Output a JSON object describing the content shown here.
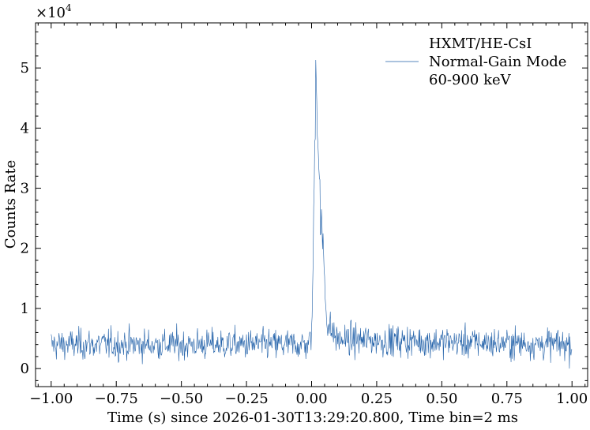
{
  "chart_data": {
    "type": "line",
    "title": "",
    "xlabel": "Time (s) since 2026-01-30T13:29:20.800, Time bin=2 ms",
    "ylabel": "Counts Rate",
    "y_multiplier_label": "×10",
    "y_multiplier_exponent": "4",
    "xlim": [
      -1.06,
      1.06
    ],
    "ylim": [
      -3000,
      57500
    ],
    "x_ticks": [
      -1.0,
      -0.75,
      -0.5,
      -0.25,
      0.0,
      0.25,
      0.5,
      0.75,
      1.0
    ],
    "x_tick_labels": [
      "−1.00",
      "−0.75",
      "−0.50",
      "−0.25",
      "0.00",
      "0.25",
      "0.50",
      "0.75",
      "1.00"
    ],
    "y_ticks": [
      0,
      10000,
      20000,
      30000,
      40000,
      50000
    ],
    "y_tick_labels": [
      "0",
      "1",
      "2",
      "3",
      "4",
      "5"
    ],
    "grid": false,
    "legend_position": "top-right",
    "legend_lines": [
      "HXMT/HE-CsI",
      "Normal-Gain Mode",
      "60-900 keV"
    ],
    "bin_width_s": 0.002,
    "series": [
      {
        "color": "#1f5fa8",
        "background_mean": 4000,
        "background_noise": 1800,
        "peak_profile": [
          [
            -1.0,
            4000
          ],
          [
            -0.01,
            4000
          ],
          [
            0.0,
            6000
          ],
          [
            0.005,
            15000
          ],
          [
            0.01,
            30000
          ],
          [
            0.015,
            47000
          ],
          [
            0.018,
            53000
          ],
          [
            0.022,
            42000
          ],
          [
            0.028,
            34000
          ],
          [
            0.035,
            24000
          ],
          [
            0.045,
            20000
          ],
          [
            0.055,
            10000
          ],
          [
            0.065,
            7000
          ],
          [
            0.1,
            4800
          ],
          [
            1.0,
            4000
          ]
        ]
      }
    ]
  }
}
